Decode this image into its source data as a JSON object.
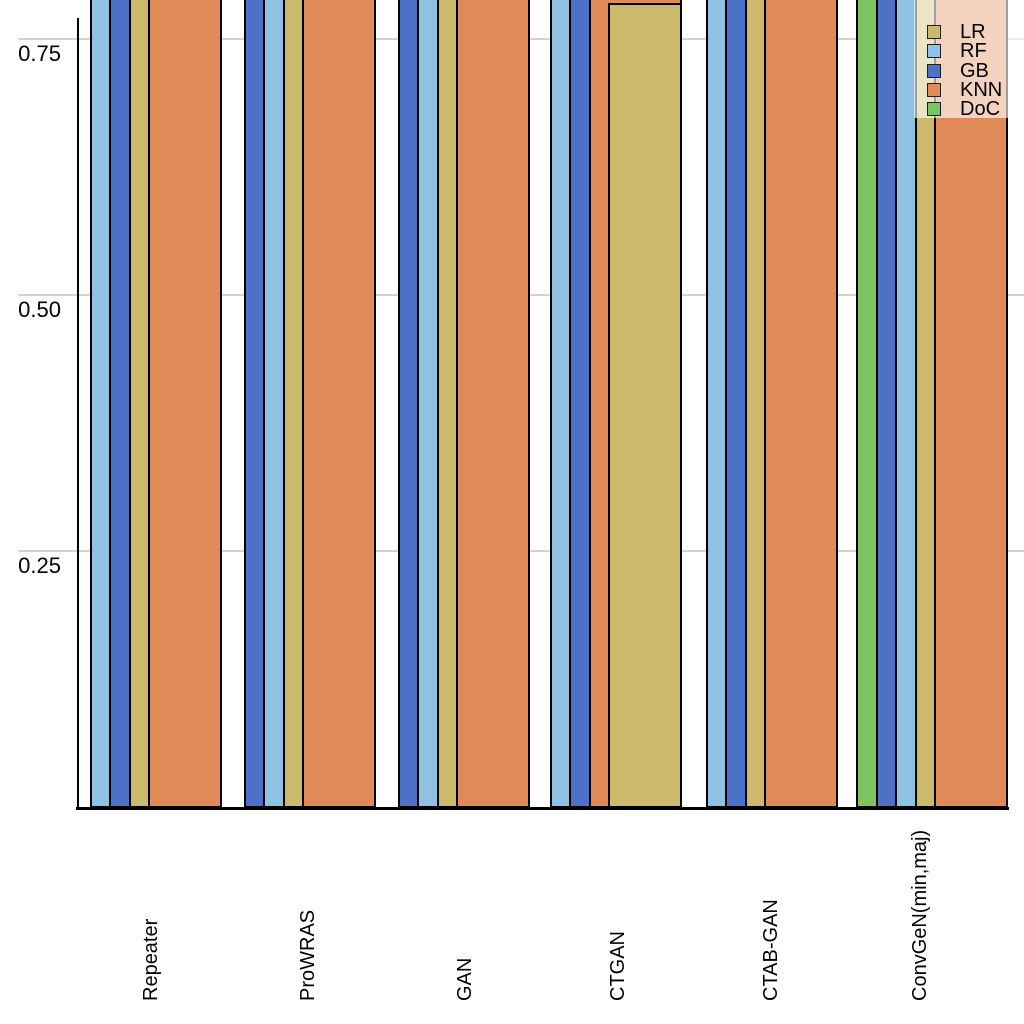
{
  "chart_data": {
    "type": "bar",
    "orientation": "vertical",
    "title": "",
    "xlabel": "",
    "ylabel": "",
    "categories": [
      "Repeater",
      "ProWRAS",
      "GAN",
      "CTGAN",
      "CTAB-GAN",
      "ConvGeN(min,maj)"
    ],
    "legend_entries": [
      "LR",
      "RF",
      "GB",
      "KNN",
      "DoC"
    ],
    "legend_position": "top-right",
    "grid": "horizontal-light-gray",
    "y_axis": {
      "tick_values": [
        0.75,
        0.5,
        0.25
      ],
      "tick_labels": [
        "0.75",
        "0.50",
        "0.25"
      ],
      "visible_range_note": "figure is cropped at the top; visible value range ends near 0.79"
    },
    "series_colors": {
      "LR": "#cdb96b",
      "RF": "#8fc2e2",
      "GB": "#4d71c6",
      "KNN": "#e08a58",
      "DoC": "#7cc462"
    },
    "bars_note": "bars listed back-to-front per group; bars overlap and share a common right edge; value null means the bar extends above the cropped top of the image (> ~0.79)",
    "groups": [
      {
        "method": "Repeater",
        "bars": [
          {
            "classifier": "RF",
            "value": null,
            "cut_off_at_top": true
          },
          {
            "classifier": "GB",
            "value": null,
            "cut_off_at_top": true
          },
          {
            "classifier": "LR",
            "value": null,
            "cut_off_at_top": true
          },
          {
            "classifier": "KNN",
            "value": null,
            "cut_off_at_top": true
          }
        ]
      },
      {
        "method": "ProWRAS",
        "bars": [
          {
            "classifier": "GB",
            "value": null,
            "cut_off_at_top": true
          },
          {
            "classifier": "RF",
            "value": null,
            "cut_off_at_top": true
          },
          {
            "classifier": "LR",
            "value": null,
            "cut_off_at_top": true
          },
          {
            "classifier": "KNN",
            "value": null,
            "cut_off_at_top": true
          }
        ]
      },
      {
        "method": "GAN",
        "bars": [
          {
            "classifier": "GB",
            "value": null,
            "cut_off_at_top": true
          },
          {
            "classifier": "RF",
            "value": null,
            "cut_off_at_top": true
          },
          {
            "classifier": "LR",
            "value": null,
            "cut_off_at_top": true
          },
          {
            "classifier": "KNN",
            "value": null,
            "cut_off_at_top": true
          }
        ]
      },
      {
        "method": "CTGAN",
        "bars": [
          {
            "classifier": "RF",
            "value": null,
            "cut_off_at_top": true
          },
          {
            "classifier": "GB",
            "value": null,
            "cut_off_at_top": true
          },
          {
            "classifier": "KNN",
            "value": null,
            "cut_off_at_top": true
          },
          {
            "classifier": "LR",
            "value": 0.785,
            "cut_off_at_top": false
          }
        ]
      },
      {
        "method": "CTAB-GAN",
        "bars": [
          {
            "classifier": "RF",
            "value": null,
            "cut_off_at_top": true
          },
          {
            "classifier": "GB",
            "value": null,
            "cut_off_at_top": true
          },
          {
            "classifier": "LR",
            "value": null,
            "cut_off_at_top": true
          },
          {
            "classifier": "KNN",
            "value": null,
            "cut_off_at_top": true
          }
        ]
      },
      {
        "method": "ConvGeN(min,maj)",
        "bars": [
          {
            "classifier": "DoC",
            "value": null,
            "cut_off_at_top": true
          },
          {
            "classifier": "GB",
            "value": null,
            "cut_off_at_top": true
          },
          {
            "classifier": "RF",
            "value": null,
            "cut_off_at_top": true
          },
          {
            "classifier": "LR",
            "value": null,
            "cut_off_at_top": true
          },
          {
            "classifier": "KNN",
            "value": null,
            "cut_off_at_top": true
          }
        ]
      }
    ]
  }
}
